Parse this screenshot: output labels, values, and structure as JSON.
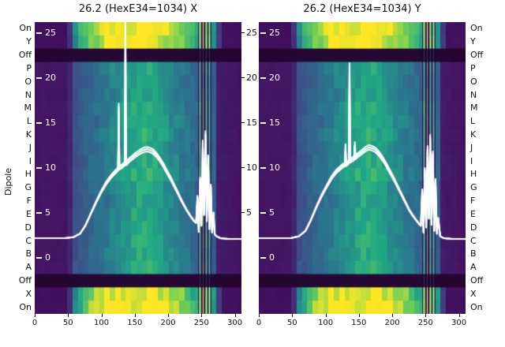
{
  "figure": {
    "y_axis_title": "Dipole",
    "row_labels": [
      "On",
      "Y",
      "Off",
      "P",
      "O",
      "N",
      "M",
      "L",
      "K",
      "J",
      "I",
      "H",
      "G",
      "F",
      "E",
      "D",
      "C",
      "B",
      "A",
      "Off",
      "X",
      "On"
    ],
    "colors": {
      "background": "#ffffff",
      "curve": "#ffffff",
      "text": "#111111",
      "viridis": [
        [
          0,
          "#440154"
        ],
        [
          0.2,
          "#414487"
        ],
        [
          0.4,
          "#2a788e"
        ],
        [
          0.6,
          "#22a884"
        ],
        [
          0.8,
          "#7ad151"
        ],
        [
          1,
          "#fde725"
        ]
      ]
    }
  },
  "chart_data": [
    {
      "type": "heatmap",
      "title": "26.2 (HexE34=1034) X",
      "x_label_ticks": [
        0,
        50,
        100,
        150,
        200,
        250,
        300
      ],
      "x_range": [
        0,
        310
      ],
      "value_ticks_inside": [
        25,
        20,
        15,
        10,
        5,
        0
      ],
      "value_ticks_right": [
        25,
        20,
        15,
        10,
        5
      ],
      "value_axis_range": [
        0,
        25
      ],
      "row_bands": [
        "bright",
        "bright",
        "dark",
        "mid",
        "mid",
        "mid",
        "mid",
        "mid",
        "mid",
        "mid",
        "mid",
        "mid",
        "mid",
        "mid",
        "mid",
        "mid",
        "mid",
        "mid",
        "mid",
        "dark",
        "bright",
        "bright"
      ],
      "heat_profiles": {
        "bright": [
          [
            0,
            0.04
          ],
          [
            50,
            0.04
          ],
          [
            56,
            0.35
          ],
          [
            66,
            0.6
          ],
          [
            80,
            0.75
          ],
          [
            100,
            0.9
          ],
          [
            120,
            1.0
          ],
          [
            180,
            1.0
          ],
          [
            200,
            0.9
          ],
          [
            220,
            0.78
          ],
          [
            238,
            0.62
          ],
          [
            252,
            0.55
          ],
          [
            268,
            0.5
          ],
          [
            274,
            0.3
          ],
          [
            278,
            0.05
          ],
          [
            310,
            0.04
          ]
        ],
        "mid": [
          [
            0,
            0.06
          ],
          [
            50,
            0.06
          ],
          [
            58,
            0.24
          ],
          [
            72,
            0.3
          ],
          [
            90,
            0.35
          ],
          [
            110,
            0.42
          ],
          [
            128,
            0.5
          ],
          [
            145,
            0.57
          ],
          [
            160,
            0.62
          ],
          [
            172,
            0.6
          ],
          [
            186,
            0.55
          ],
          [
            200,
            0.49
          ],
          [
            214,
            0.43
          ],
          [
            228,
            0.38
          ],
          [
            242,
            0.34
          ],
          [
            258,
            0.31
          ],
          [
            270,
            0.3
          ],
          [
            276,
            0.08
          ],
          [
            310,
            0.05
          ]
        ],
        "dark": [
          [
            0,
            0.02
          ],
          [
            60,
            0.04
          ],
          [
            150,
            0.05
          ],
          [
            240,
            0.04
          ],
          [
            310,
            0.02
          ]
        ]
      },
      "stripes_dark": [
        245,
        250,
        254,
        259,
        264
      ],
      "stripes_bright": [
        247,
        252,
        257,
        262
      ],
      "curve": {
        "baseline": 2.1,
        "points": [
          [
            0,
            2.2
          ],
          [
            45,
            2.2
          ],
          [
            58,
            2.3
          ],
          [
            68,
            2.7
          ],
          [
            76,
            3.6
          ],
          [
            84,
            4.9
          ],
          [
            92,
            6.2
          ],
          [
            100,
            7.4
          ],
          [
            107,
            8.3
          ],
          [
            114,
            9
          ],
          [
            120,
            9.5
          ],
          [
            124,
            9.8
          ],
          [
            125,
            9.9
          ],
          [
            126,
            16.8
          ],
          [
            127,
            10
          ],
          [
            131,
            10.2
          ],
          [
            134,
            10.4
          ],
          [
            135,
            10.5
          ],
          [
            136,
            25.6
          ],
          [
            137,
            10.5
          ],
          [
            142,
            10.9
          ],
          [
            147,
            11.2
          ],
          [
            152,
            11.5
          ],
          [
            158,
            11.8
          ],
          [
            163,
            12
          ],
          [
            168,
            12.1
          ],
          [
            173,
            12
          ],
          [
            178,
            11.8
          ],
          [
            183,
            11.4
          ],
          [
            188,
            10.9
          ],
          [
            193,
            10.3
          ],
          [
            198,
            9.6
          ],
          [
            204,
            8.8
          ],
          [
            210,
            7.9
          ],
          [
            216,
            7
          ],
          [
            222,
            6.1
          ],
          [
            228,
            5.3
          ],
          [
            234,
            4.6
          ],
          [
            239,
            4.1
          ],
          [
            242,
            3.9
          ],
          [
            244,
            6.8
          ],
          [
            246,
            2.9
          ],
          [
            248,
            8.8
          ],
          [
            250,
            3.6
          ],
          [
            252,
            12.8
          ],
          [
            254,
            4.8
          ],
          [
            256,
            13.8
          ],
          [
            258,
            4.1
          ],
          [
            260,
            11.2
          ],
          [
            262,
            3.2
          ],
          [
            264,
            8
          ],
          [
            266,
            2.8
          ],
          [
            268,
            5
          ],
          [
            270,
            2.6
          ],
          [
            273,
            2.4
          ],
          [
            278,
            2.2
          ],
          [
            290,
            2.1
          ],
          [
            310,
            2.1
          ]
        ]
      }
    },
    {
      "type": "heatmap",
      "title": "26.2 (HexE34=1034) Y",
      "x_label_ticks": [
        0,
        50,
        100,
        150,
        200,
        250,
        300
      ],
      "x_range": [
        0,
        310
      ],
      "value_ticks_inside": [
        25,
        20,
        15,
        10,
        5,
        0
      ],
      "value_ticks_right": [],
      "value_axis_range": [
        0,
        25
      ],
      "row_bands": [
        "bright",
        "bright",
        "dark",
        "mid",
        "mid",
        "mid",
        "mid",
        "mid",
        "mid",
        "mid",
        "mid",
        "mid",
        "mid",
        "mid",
        "mid",
        "mid",
        "mid",
        "mid",
        "mid",
        "dark",
        "bright",
        "bright"
      ],
      "heat_profiles": {
        "bright": [
          [
            0,
            0.04
          ],
          [
            50,
            0.04
          ],
          [
            56,
            0.35
          ],
          [
            66,
            0.6
          ],
          [
            80,
            0.75
          ],
          [
            100,
            0.9
          ],
          [
            120,
            1.0
          ],
          [
            180,
            1.0
          ],
          [
            200,
            0.9
          ],
          [
            220,
            0.78
          ],
          [
            238,
            0.62
          ],
          [
            252,
            0.55
          ],
          [
            268,
            0.5
          ],
          [
            274,
            0.3
          ],
          [
            278,
            0.05
          ],
          [
            310,
            0.04
          ]
        ],
        "mid": [
          [
            0,
            0.06
          ],
          [
            50,
            0.06
          ],
          [
            58,
            0.24
          ],
          [
            72,
            0.3
          ],
          [
            90,
            0.35
          ],
          [
            110,
            0.42
          ],
          [
            128,
            0.5
          ],
          [
            145,
            0.57
          ],
          [
            160,
            0.62
          ],
          [
            172,
            0.6
          ],
          [
            186,
            0.55
          ],
          [
            200,
            0.49
          ],
          [
            214,
            0.43
          ],
          [
            228,
            0.38
          ],
          [
            242,
            0.34
          ],
          [
            258,
            0.31
          ],
          [
            270,
            0.3
          ],
          [
            276,
            0.08
          ],
          [
            310,
            0.05
          ]
        ],
        "dark": [
          [
            0,
            0.02
          ],
          [
            60,
            0.04
          ],
          [
            150,
            0.05
          ],
          [
            240,
            0.04
          ],
          [
            310,
            0.02
          ]
        ]
      },
      "stripes_dark": [
        245,
        250,
        254,
        259,
        264
      ],
      "stripes_bright": [
        247,
        252,
        257,
        262
      ],
      "curve": {
        "baseline": 2.1,
        "points": [
          [
            0,
            2.2
          ],
          [
            48,
            2.2
          ],
          [
            60,
            2.4
          ],
          [
            70,
            3
          ],
          [
            78,
            4.2
          ],
          [
            86,
            5.6
          ],
          [
            94,
            6.9
          ],
          [
            102,
            8
          ],
          [
            109,
            8.9
          ],
          [
            116,
            9.6
          ],
          [
            122,
            10
          ],
          [
            127,
            10.3
          ],
          [
            129,
            10.4
          ],
          [
            130,
            12.4
          ],
          [
            131,
            10.4
          ],
          [
            134,
            10.6
          ],
          [
            135,
            10.7
          ],
          [
            136,
            21.2
          ],
          [
            137,
            10.8
          ],
          [
            141,
            11
          ],
          [
            143,
            11.1
          ],
          [
            144,
            12.6
          ],
          [
            145,
            11.2
          ],
          [
            150,
            11.5
          ],
          [
            155,
            11.8
          ],
          [
            160,
            12.1
          ],
          [
            165,
            12.3
          ],
          [
            170,
            12.2
          ],
          [
            175,
            12
          ],
          [
            180,
            11.6
          ],
          [
            185,
            11.1
          ],
          [
            190,
            10.5
          ],
          [
            195,
            9.8
          ],
          [
            201,
            9
          ],
          [
            207,
            8.1
          ],
          [
            213,
            7.2
          ],
          [
            219,
            6.3
          ],
          [
            225,
            5.4
          ],
          [
            231,
            4.7
          ],
          [
            236,
            4.2
          ],
          [
            240,
            3.8
          ],
          [
            243,
            3.6
          ],
          [
            245,
            7.5
          ],
          [
            247,
            2.8
          ],
          [
            249,
            9.8
          ],
          [
            251,
            3.4
          ],
          [
            253,
            12.2
          ],
          [
            255,
            4.4
          ],
          [
            257,
            13.4
          ],
          [
            259,
            3.7
          ],
          [
            261,
            11.6
          ],
          [
            263,
            3
          ],
          [
            265,
            8.6
          ],
          [
            267,
            2.7
          ],
          [
            269,
            4.4
          ],
          [
            272,
            2.4
          ],
          [
            277,
            2.2
          ],
          [
            290,
            2.1
          ],
          [
            310,
            2.1
          ]
        ]
      }
    }
  ]
}
